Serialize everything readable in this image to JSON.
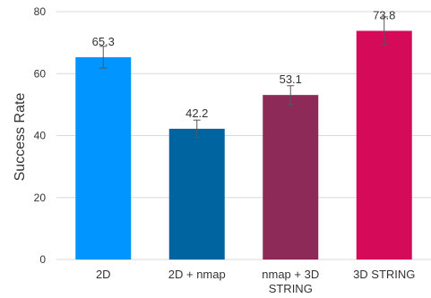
{
  "chart_data": {
    "type": "bar",
    "title": "",
    "xlabel": "",
    "ylabel": "Success Rate",
    "ylim": [
      0,
      80
    ],
    "yticks": [
      0,
      20,
      40,
      60,
      80
    ],
    "grid": "horizontal",
    "categories": [
      "2D",
      "2D + nmap",
      "nmap + 3D STRING",
      "3D STRING"
    ],
    "category_lines": [
      [
        "2D"
      ],
      [
        "2D + nmap"
      ],
      [
        "nmap + 3D",
        "STRING"
      ],
      [
        "3D STRING"
      ]
    ],
    "values": [
      65.3,
      42.2,
      53.1,
      73.8
    ],
    "value_labels": [
      "65.3",
      "42.2",
      "53.1",
      "73.8"
    ],
    "errors": [
      3.5,
      2.8,
      3.0,
      4.5
    ],
    "colors": [
      "#0095FF",
      "#0064A0",
      "#8E2A58",
      "#D50B5A"
    ],
    "error_bar_color": "#555555",
    "grid_color": "#d9d9d9"
  }
}
